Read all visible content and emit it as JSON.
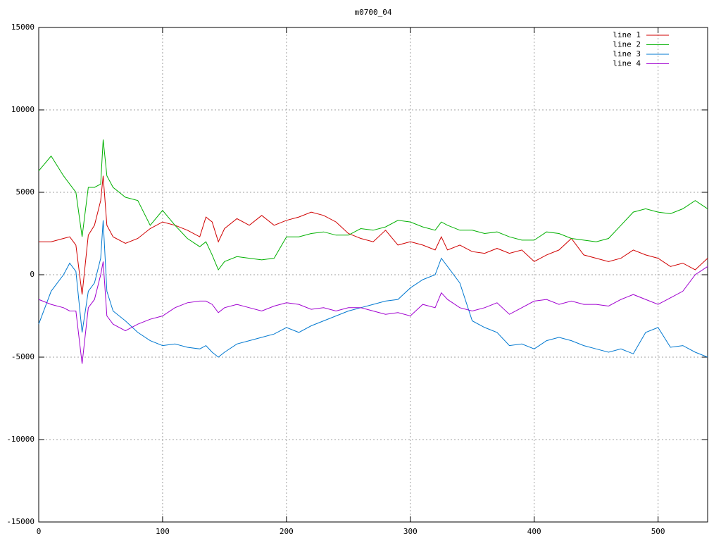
{
  "chart_data": {
    "type": "line",
    "title": "m0700_04",
    "x": [
      0,
      10,
      20,
      25,
      30,
      35,
      40,
      45,
      50,
      52,
      55,
      60,
      70,
      80,
      90,
      100,
      110,
      120,
      130,
      135,
      140,
      145,
      150,
      160,
      170,
      180,
      190,
      200,
      210,
      220,
      230,
      240,
      250,
      260,
      270,
      280,
      290,
      300,
      310,
      320,
      325,
      330,
      340,
      350,
      360,
      370,
      380,
      390,
      400,
      410,
      420,
      430,
      440,
      450,
      460,
      470,
      480,
      490,
      500,
      510,
      520,
      530,
      540
    ],
    "series": [
      {
        "name": "line 1",
        "color": "#d00000",
        "values": [
          2000,
          2000,
          2200,
          2300,
          1800,
          -1200,
          2400,
          3000,
          4500,
          6000,
          3000,
          2300,
          1900,
          2200,
          2800,
          3200,
          3000,
          2700,
          2300,
          3500,
          3200,
          2000,
          2800,
          3400,
          3000,
          3600,
          3000,
          3300,
          3500,
          3800,
          3600,
          3200,
          2500,
          2200,
          2000,
          2700,
          1800,
          2000,
          1800,
          1500,
          2300,
          1500,
          1800,
          1400,
          1300,
          1600,
          1300,
          1500,
          800,
          1200,
          1500,
          2200,
          1200,
          1000,
          800,
          1000,
          1500,
          1200,
          1000,
          500,
          700,
          300,
          1000
        ]
      },
      {
        "name": "line 2",
        "color": "#00b000",
        "values": [
          6300,
          7200,
          6000,
          5500,
          5000,
          2300,
          5300,
          5300,
          5500,
          8200,
          6000,
          5300,
          4700,
          4500,
          3000,
          3900,
          3000,
          2200,
          1700,
          2000,
          1200,
          300,
          800,
          1100,
          1000,
          900,
          1000,
          2300,
          2300,
          2500,
          2600,
          2400,
          2400,
          2800,
          2700,
          2900,
          3300,
          3200,
          2900,
          2700,
          3200,
          3000,
          2700,
          2700,
          2500,
          2600,
          2300,
          2100,
          2100,
          2600,
          2500,
          2200,
          2100,
          2000,
          2200,
          3000,
          3800,
          4000,
          3800,
          3700,
          4000,
          4500,
          4000
        ]
      },
      {
        "name": "line 3",
        "color": "#0078d0",
        "values": [
          -3000,
          -1000,
          0,
          700,
          200,
          -3500,
          -1000,
          -500,
          1000,
          3300,
          -1000,
          -2200,
          -2800,
          -3500,
          -4000,
          -4300,
          -4200,
          -4400,
          -4500,
          -4300,
          -4700,
          -5000,
          -4700,
          -4200,
          -4000,
          -3800,
          -3600,
          -3200,
          -3500,
          -3100,
          -2800,
          -2500,
          -2200,
          -2000,
          -1800,
          -1600,
          -1500,
          -800,
          -300,
          0,
          1000,
          500,
          -500,
          -2800,
          -3200,
          -3500,
          -4300,
          -4200,
          -4500,
          -4000,
          -3800,
          -4000,
          -4300,
          -4500,
          -4700,
          -4500,
          -4800,
          -3500,
          -3200,
          -4400,
          -4300,
          -4700,
          -5000
        ]
      },
      {
        "name": "line 4",
        "color": "#a000d0",
        "values": [
          -1500,
          -1800,
          -2000,
          -2200,
          -2200,
          -5400,
          -2000,
          -1500,
          0,
          800,
          -2500,
          -3000,
          -3400,
          -3000,
          -2700,
          -2500,
          -2000,
          -1700,
          -1600,
          -1600,
          -1800,
          -2300,
          -2000,
          -1800,
          -2000,
          -2200,
          -1900,
          -1700,
          -1800,
          -2100,
          -2000,
          -2200,
          -2000,
          -2000,
          -2200,
          -2400,
          -2300,
          -2500,
          -1800,
          -2000,
          -1100,
          -1500,
          -2000,
          -2200,
          -2000,
          -1700,
          -2400,
          -2000,
          -1600,
          -1500,
          -1800,
          -1600,
          -1800,
          -1800,
          -1900,
          -1500,
          -1200,
          -1500,
          -1800,
          -1400,
          -1000,
          0,
          500
        ]
      }
    ],
    "xlim": [
      0,
      540
    ],
    "xticks": [
      0,
      100,
      200,
      300,
      400,
      500
    ],
    "ylim": [
      -15000,
      15000
    ],
    "yticks": [
      -15000,
      -10000,
      -5000,
      0,
      5000,
      10000,
      15000
    ],
    "grid": true,
    "legend": "top-right"
  }
}
